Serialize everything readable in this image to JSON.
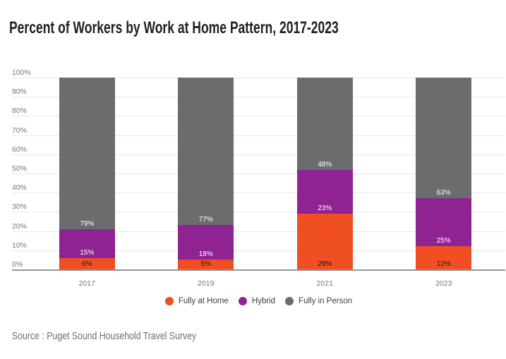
{
  "source_note": "Source : Puget Sound Household Travel Survey",
  "colors": {
    "background": "#FFFFFF",
    "title_text": "#231F20",
    "axis_text": "#757575",
    "gridline": "#E7E7E7",
    "axis_baseline": "#939598",
    "legend_text": "#3E3E3E",
    "source_text": "#6E6E6E",
    "fully_at_home": "#F04E23",
    "hybrid": "#8E2391",
    "fully_in_person": "#6B6C6E"
  },
  "chart_data": {
    "type": "bar",
    "stacked": true,
    "title": "Percent of Workers by Work at Home Pattern, 2017-2023",
    "xlabel": "",
    "ylabel": "",
    "ylim": [
      0,
      100
    ],
    "grid": true,
    "legend_position": "bottom",
    "value_suffix": "%",
    "categories": [
      "2017",
      "2019",
      "2021",
      "2023"
    ],
    "series": [
      {
        "name": "Fully at Home",
        "color": "#F04E23",
        "label_color": "#1A1A1A",
        "values": [
          6,
          5,
          29,
          12
        ]
      },
      {
        "name": "Hybrid",
        "color": "#8E2391",
        "label_color": "#FFFFFF",
        "values": [
          15,
          18,
          23,
          25
        ]
      },
      {
        "name": "Fully in Person",
        "color": "#6B6C6E",
        "label_color": "#FFFFFF",
        "values": [
          79,
          77,
          48,
          63
        ]
      }
    ],
    "y_axis": {
      "ticks": [
        "100%",
        "90%",
        "80%",
        "70%",
        "60%",
        "50%",
        "40%",
        "30%",
        "20%",
        "10%",
        "0%"
      ]
    }
  }
}
